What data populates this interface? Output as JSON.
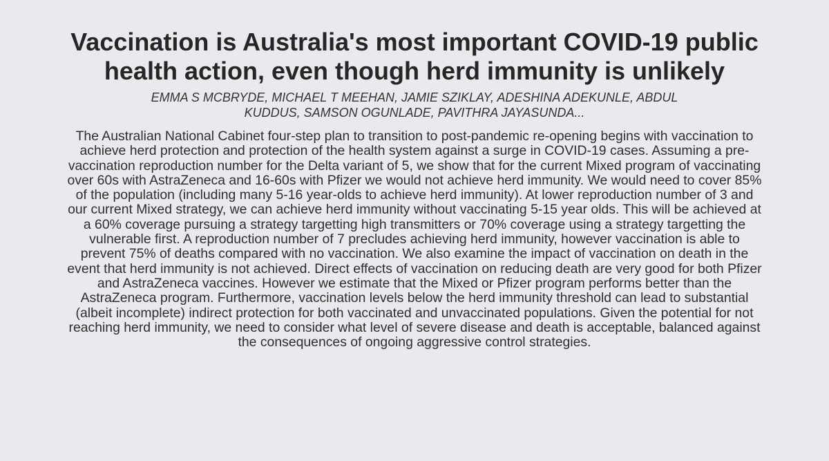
{
  "paper": {
    "title": "Vaccination is Australia's most important COVID-19 public health action, even though herd immunity is unlikely",
    "authors": "Emma S McBryde, Michael T Meehan, Jamie Sziklay, Adeshina Adekunle, Abdul Kuddus, Samson Ogunlade, Pavithra Jayasunda...",
    "abstract": "The Australian National Cabinet four-step plan to transition to post-pandemic re-opening begins with vaccination to achieve herd protection and protection of the health system against a surge in COVID-19 cases. Assuming a pre-vaccination reproduction number for the Delta variant of 5, we show that for the current Mixed program of vaccinating over 60s with AstraZeneca and 16-60s with Pfizer we would not achieve herd immunity. We would need to cover 85% of the population (including many 5-16 year-olds to achieve herd immunity). At lower reproduction number of 3 and our current Mixed strategy, we can achieve herd immunity without vaccinating 5-15 year olds. This will be achieved at a 60% coverage pursuing a strategy targetting high transmitters or 70% coverage using a strategy targetting the vulnerable first. A reproduction number of 7 precludes achieving herd immunity, however vaccination is able to prevent 75% of deaths compared with no vaccination. We also examine the impact of vaccination on death in the event that herd immunity is not achieved. Direct effects of vaccination on reducing death are very good for both Pfizer and AstraZeneca vaccines. However we estimate that the Mixed or Pfizer program performs better than the AstraZeneca program. Furthermore, vaccination levels below the herd immunity threshold can lead to substantial (albeit incomplete) indirect protection for both vaccinated and unvaccinated populations. Given the potential for not reaching herd immunity, we need to consider what level of severe disease and death is acceptable, balanced against the consequences of ongoing aggressive control strategies."
  }
}
